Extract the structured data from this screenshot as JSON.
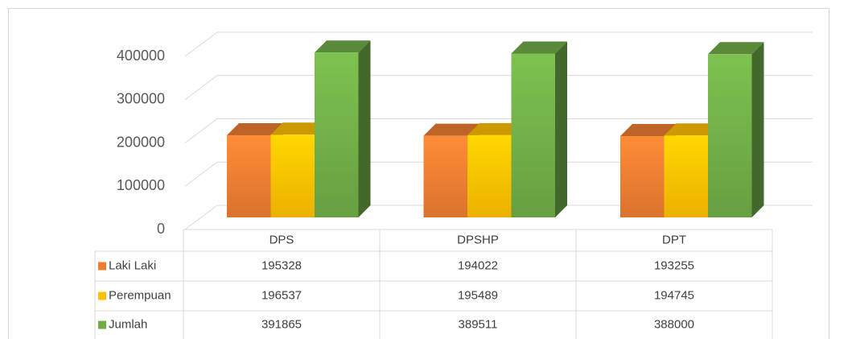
{
  "chart_data": {
    "type": "bar3d",
    "categories": [
      "DPS",
      "DPSHP",
      "DPT"
    ],
    "series": [
      {
        "name": "Laki Laki",
        "color": "#ed7d31",
        "values": [
          195328,
          194022,
          193255
        ]
      },
      {
        "name": "Perempuan",
        "color": "#ffc000",
        "values": [
          196537,
          195489,
          194745
        ]
      },
      {
        "name": "Jumlah",
        "color": "#70ad47",
        "values": [
          391865,
          389511,
          388000
        ]
      }
    ],
    "ylim": [
      0,
      400000
    ],
    "yticks": [
      0,
      100000,
      200000,
      300000,
      400000
    ],
    "grid": true,
    "data_table": true
  }
}
